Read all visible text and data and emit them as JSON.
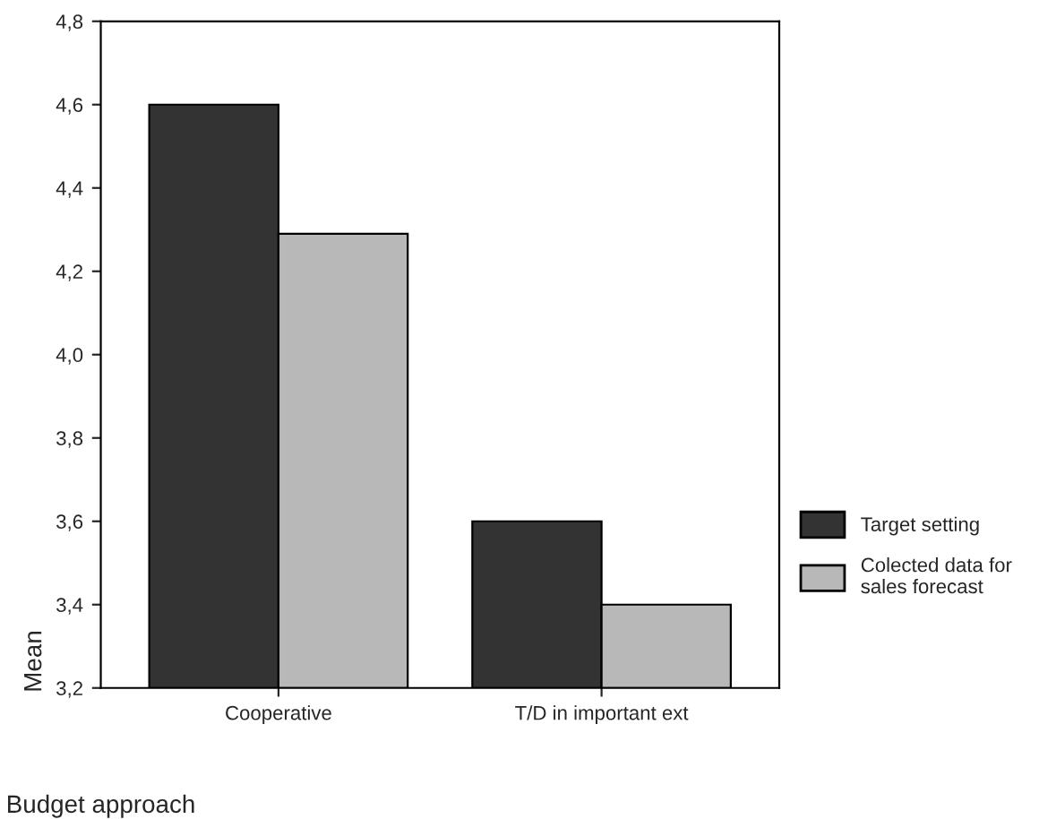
{
  "chart_data": {
    "type": "bar",
    "xlabel": "Budget approach",
    "ylabel": "Mean",
    "categories": [
      "Cooperative",
      "T/D in important ext"
    ],
    "series": [
      {
        "name": "Target setting",
        "color": "#333333",
        "values": [
          4.6,
          3.6
        ]
      },
      {
        "name": "Colected data for\nsales forecast",
        "color": "#b8b8b8",
        "values": [
          4.29,
          3.4
        ]
      }
    ],
    "ylim": [
      3.2,
      4.8
    ],
    "yticks": [
      {
        "value": 3.2,
        "label": "3,2"
      },
      {
        "value": 3.4,
        "label": "3,4"
      },
      {
        "value": 3.6,
        "label": "3,6"
      },
      {
        "value": 3.8,
        "label": "3,8"
      },
      {
        "value": 4.0,
        "label": "4,0"
      },
      {
        "value": 4.2,
        "label": "4,2"
      },
      {
        "value": 4.4,
        "label": "4,4"
      },
      {
        "value": 4.6,
        "label": "4,6"
      },
      {
        "value": 4.8,
        "label": "4,8"
      }
    ],
    "legend": "right",
    "grid": false
  }
}
